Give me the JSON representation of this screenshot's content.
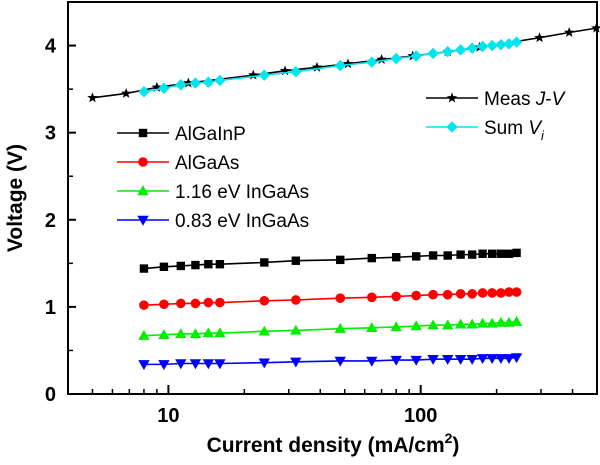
{
  "chart_data": {
    "type": "line",
    "title": "",
    "xlabel": "Current density (mA/cm",
    "xlabel_sup": "2",
    "xlabel_end": ")",
    "ylabel": "Voltage (V)",
    "xscale": "log",
    "xlim": [
      4,
      500
    ],
    "ylim": [
      0,
      4.5
    ],
    "x_ticks": [
      {
        "value": 10,
        "label": "10"
      },
      {
        "value": 100,
        "label": "100"
      }
    ],
    "y_ticks": [
      {
        "value": 0,
        "label": "0"
      },
      {
        "value": 1,
        "label": "1"
      },
      {
        "value": 2,
        "label": "2"
      },
      {
        "value": 3,
        "label": "3"
      },
      {
        "value": 4,
        "label": "4"
      }
    ],
    "grid": false,
    "legends": [
      {
        "placement": "center-left",
        "entries": [
          "AlGaInP",
          "AlGaAs",
          "1.16 eV InGaAs",
          "0.83 eV InGaAs"
        ]
      },
      {
        "placement": "top-right",
        "entries": [
          "Meas J-V",
          "Sum V_i"
        ]
      }
    ],
    "series": [
      {
        "name": "AlGaInP",
        "color": "#000000",
        "marker": "square",
        "x": [
          8,
          9.6,
          11.2,
          12.8,
          14.4,
          16,
          24,
          32,
          48,
          64,
          80,
          96,
          112,
          128,
          144,
          160,
          176,
          192,
          208,
          224,
          240
        ],
        "y": [
          1.44,
          1.46,
          1.47,
          1.48,
          1.49,
          1.49,
          1.51,
          1.53,
          1.54,
          1.56,
          1.57,
          1.58,
          1.59,
          1.59,
          1.6,
          1.6,
          1.61,
          1.61,
          1.61,
          1.61,
          1.62
        ]
      },
      {
        "name": "AlGaAs",
        "color": "#ff0000",
        "marker": "circle",
        "x": [
          8,
          9.6,
          11.2,
          12.8,
          14.4,
          16,
          24,
          32,
          48,
          64,
          80,
          96,
          112,
          128,
          144,
          160,
          176,
          192,
          208,
          224,
          240
        ],
        "y": [
          1.02,
          1.03,
          1.04,
          1.04,
          1.05,
          1.05,
          1.07,
          1.08,
          1.1,
          1.11,
          1.12,
          1.13,
          1.14,
          1.14,
          1.15,
          1.15,
          1.16,
          1.16,
          1.16,
          1.17,
          1.17
        ]
      },
      {
        "name": "1.16 eV InGaAs",
        "color": "#00ee00",
        "marker": "triangle-up",
        "x": [
          8,
          9.6,
          11.2,
          12.8,
          14.4,
          16,
          24,
          32,
          48,
          64,
          80,
          96,
          112,
          128,
          144,
          160,
          176,
          192,
          208,
          224,
          240
        ],
        "y": [
          0.67,
          0.68,
          0.69,
          0.69,
          0.7,
          0.7,
          0.72,
          0.73,
          0.75,
          0.76,
          0.77,
          0.78,
          0.79,
          0.79,
          0.8,
          0.8,
          0.81,
          0.81,
          0.82,
          0.82,
          0.83
        ]
      },
      {
        "name": "0.83 eV InGaAs",
        "color": "#0000ff",
        "marker": "triangle-down",
        "x": [
          8,
          9.6,
          11.2,
          12.8,
          14.4,
          16,
          24,
          32,
          48,
          64,
          80,
          96,
          112,
          128,
          144,
          160,
          176,
          192,
          208,
          224,
          240
        ],
        "y": [
          0.34,
          0.34,
          0.35,
          0.35,
          0.35,
          0.35,
          0.36,
          0.37,
          0.38,
          0.38,
          0.39,
          0.39,
          0.4,
          0.4,
          0.4,
          0.4,
          0.41,
          0.41,
          0.41,
          0.41,
          0.42
        ]
      },
      {
        "name": "Meas J-V",
        "color": "#000000",
        "marker": "star",
        "x": [
          5,
          6.8,
          9,
          12,
          21.7,
          29,
          38.8,
          51.5,
          70,
          93,
          128,
          171,
          296,
          388,
          497
        ],
        "y": [
          3.4,
          3.45,
          3.52,
          3.57,
          3.66,
          3.71,
          3.75,
          3.79,
          3.84,
          3.88,
          3.93,
          3.98,
          4.09,
          4.15,
          4.2
        ]
      },
      {
        "name": "Sum V_i",
        "color": "#00e5ee",
        "marker": "diamond",
        "x": [
          8,
          9.6,
          11.2,
          12.8,
          14.4,
          16,
          24,
          32,
          48,
          64,
          80,
          96,
          112,
          128,
          144,
          160,
          176,
          192,
          208,
          224,
          240
        ],
        "y": [
          3.47,
          3.51,
          3.55,
          3.57,
          3.58,
          3.6,
          3.66,
          3.7,
          3.77,
          3.81,
          3.85,
          3.88,
          3.91,
          3.93,
          3.95,
          3.97,
          3.99,
          4.0,
          4.01,
          4.02,
          4.04
        ]
      }
    ]
  }
}
